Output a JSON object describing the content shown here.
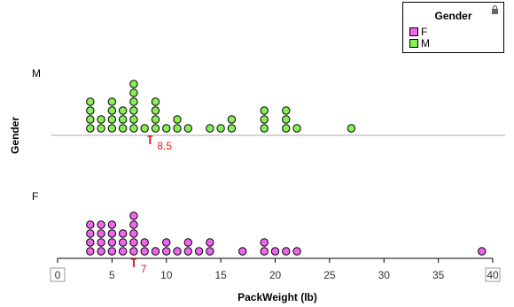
{
  "chart_data": {
    "type": "dotplot",
    "xlabel": "PackWeight (lb)",
    "ylabel": "Gender",
    "xlim": [
      0,
      40
    ],
    "xticks": [
      0,
      5,
      10,
      15,
      20,
      25,
      30,
      35,
      40
    ],
    "grid": false,
    "legend": {
      "title": "Gender",
      "placement": "top-right",
      "entries": [
        {
          "label": "F",
          "color": "#ee66ee"
        },
        {
          "label": "M",
          "color": "#88ee55"
        }
      ]
    },
    "groups": [
      {
        "name": "M",
        "color": "#88ee55",
        "median": 8.5,
        "median_label": "8.5",
        "counts": [
          [
            3,
            4
          ],
          [
            4,
            2
          ],
          [
            5,
            4
          ],
          [
            6,
            3
          ],
          [
            7,
            6
          ],
          [
            8,
            1
          ],
          [
            9,
            4
          ],
          [
            10,
            1
          ],
          [
            11,
            2
          ],
          [
            12,
            1
          ],
          [
            14,
            1
          ],
          [
            15,
            1
          ],
          [
            16,
            2
          ],
          [
            19,
            3
          ],
          [
            21,
            3
          ],
          [
            22,
            1
          ],
          [
            27,
            1
          ]
        ]
      },
      {
        "name": "F",
        "color": "#ee66ee",
        "median": 7,
        "median_label": "7",
        "counts": [
          [
            3,
            4
          ],
          [
            4,
            4
          ],
          [
            5,
            4
          ],
          [
            6,
            3
          ],
          [
            7,
            5
          ],
          [
            8,
            2
          ],
          [
            9,
            1
          ],
          [
            10,
            2
          ],
          [
            11,
            1
          ],
          [
            12,
            2
          ],
          [
            13,
            1
          ],
          [
            14,
            2
          ],
          [
            17,
            1
          ],
          [
            19,
            2
          ],
          [
            20,
            1
          ],
          [
            21,
            1
          ],
          [
            22,
            1
          ],
          [
            39,
            1
          ]
        ]
      }
    ],
    "median_color": "#dd2222"
  }
}
